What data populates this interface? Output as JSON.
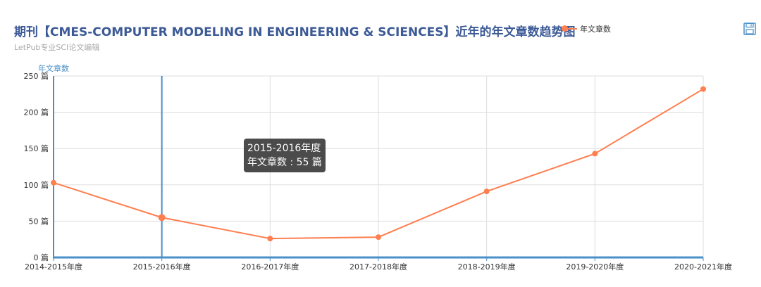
{
  "header": {
    "title": "期刊【CMES-COMPUTER MODELING IN ENGINEERING & SCIENCES】近年的年文章数趋势图",
    "subtitle": "LetPub专业SCI论文编辑"
  },
  "legend": {
    "label": "年文章数",
    "color": "#ff7f50"
  },
  "toolbar": {
    "save_icon": "save-disk-icon"
  },
  "tooltip": {
    "category": "2015-2016年度",
    "text": "年文章数 : 55 篇"
  },
  "colors": {
    "axis": "#4a8fc7",
    "series": "#ff7f50",
    "grid": "#dddddd",
    "title": "#3c5a96"
  },
  "chart_data": {
    "type": "line",
    "title": "期刊【CMES-COMPUTER MODELING IN ENGINEERING & SCIENCES】近年的年文章数趋势图",
    "subtitle": "LetPub专业SCI论文编辑",
    "ylabel": "年文章数",
    "xlabel": "",
    "categories": [
      "2014-2015年度",
      "2015-2016年度",
      "2016-2017年度",
      "2017-2018年度",
      "2018-2019年度",
      "2019-2020年度",
      "2020-2021年度"
    ],
    "series": [
      {
        "name": "年文章数",
        "values": [
          103,
          55,
          26,
          28,
          91,
          143,
          232
        ]
      }
    ],
    "yticks": [
      0,
      50,
      100,
      150,
      200,
      250
    ],
    "ytick_labels": [
      "0 篇",
      "50 篇",
      "100 篇",
      "150 篇",
      "200 篇",
      "250 篇"
    ],
    "ylim": [
      0,
      250
    ],
    "grid": true,
    "legend_position": "top",
    "highlighted_category": "2015-2016年度"
  }
}
